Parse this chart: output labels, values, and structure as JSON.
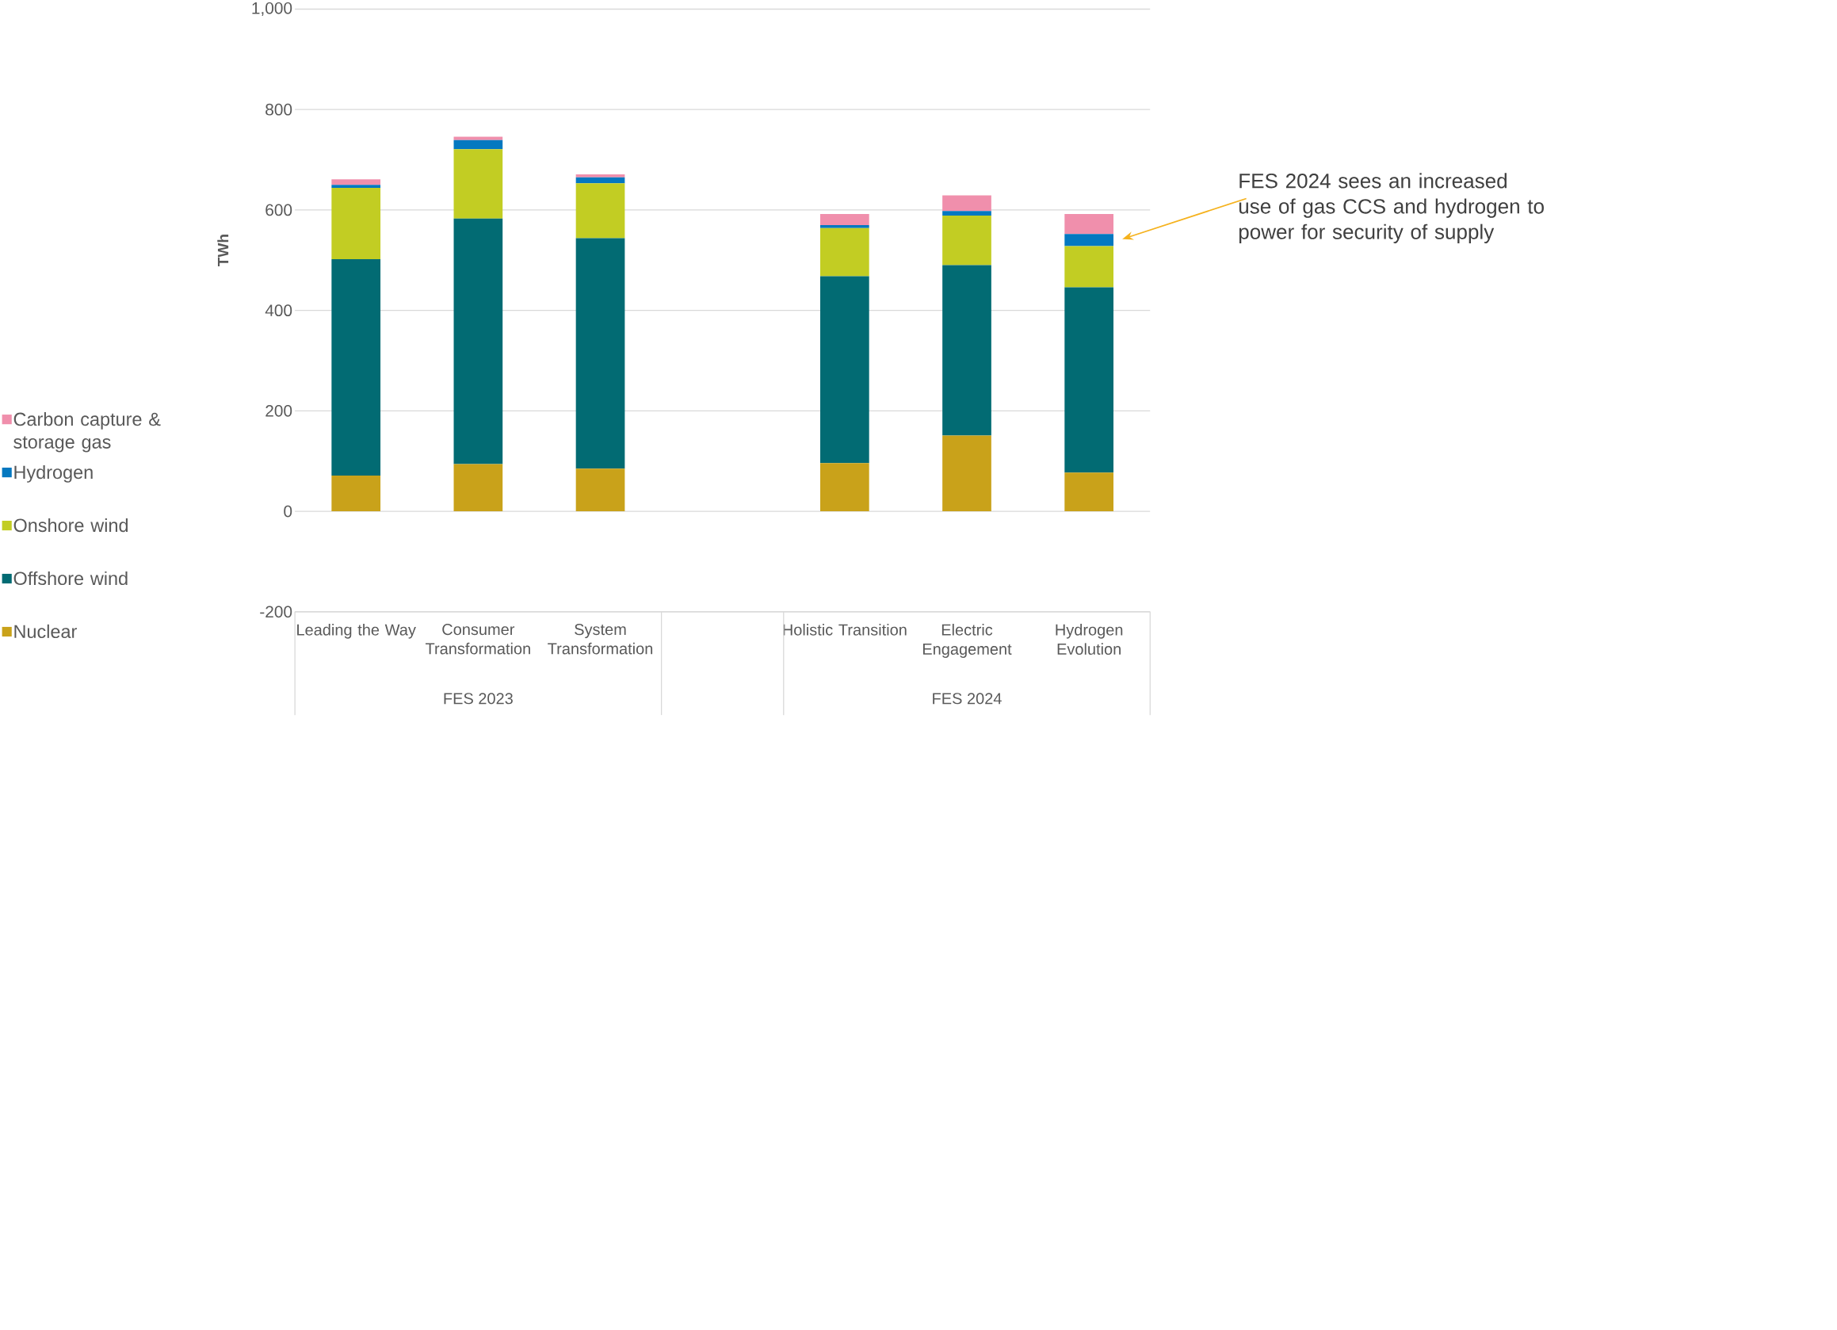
{
  "chart_data": {
    "type": "bar",
    "stacked": true,
    "categories": [
      "Leading the Way",
      "Consumer Transformation",
      "System Transformation",
      null,
      "Holistic Transition",
      "Electric Engagement",
      "Hydrogen Evolution"
    ],
    "series": [
      {
        "name": "Nuclear",
        "color": "#c9a21a",
        "values": [
          71,
          94,
          85,
          null,
          96,
          151,
          77
        ]
      },
      {
        "name": "Offshore wind",
        "color": "#026b73",
        "values": [
          431,
          489,
          459,
          null,
          372,
          339,
          369
        ]
      },
      {
        "name": "Onshore wind",
        "color": "#c2cd23",
        "values": [
          142,
          138,
          109,
          null,
          96,
          99,
          82
        ]
      },
      {
        "name": "Hydrogen",
        "color": "#0478c0",
        "values": [
          6,
          18,
          12,
          null,
          6,
          9,
          24
        ]
      },
      {
        "name": "Carbon capture & storage gas",
        "color": "#f08fac",
        "values": [
          11,
          7,
          6,
          null,
          22,
          31,
          40
        ]
      }
    ],
    "ylabel": "TWh",
    "ylim": [
      -200,
      1000
    ],
    "yticks": [
      -200,
      0,
      200,
      400,
      600,
      800,
      {
        "value": 1000,
        "label": "1,000"
      }
    ],
    "grid": "y",
    "legend": "left",
    "annotations": [
      "FES 2023",
      "FES 2024",
      "FES 2024 sees an increased use of gas CCS and hydrogen to power for security of supply"
    ]
  }
}
